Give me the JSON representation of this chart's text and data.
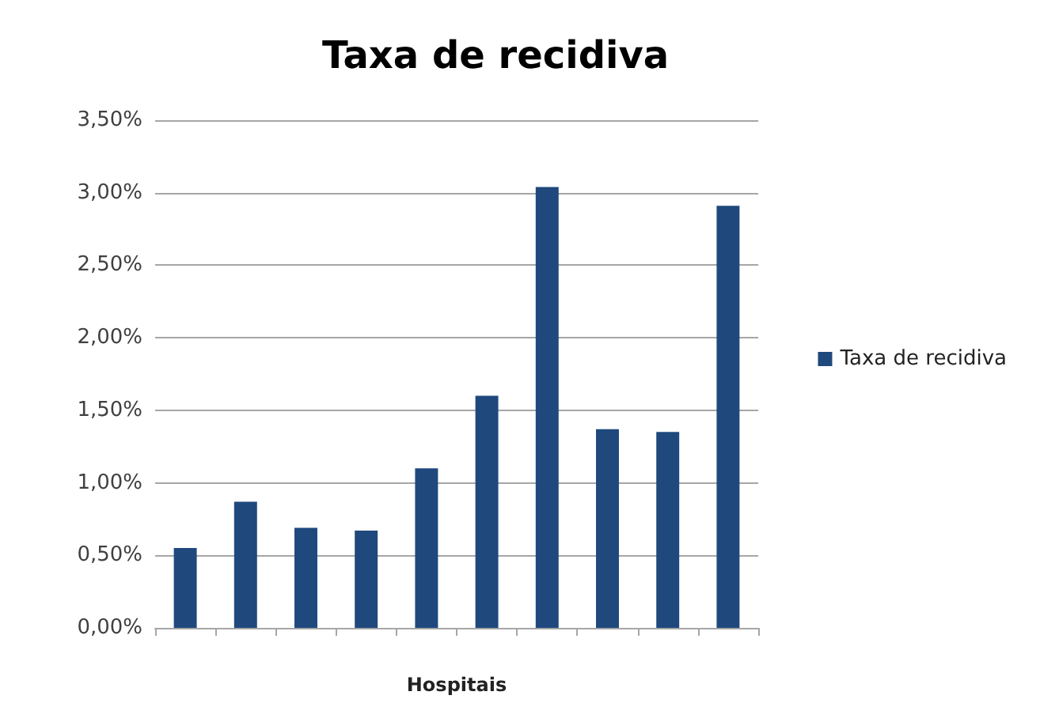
{
  "chart_data": {
    "type": "bar",
    "title": "Taxa de recidiva",
    "xlabel": "Hospitais",
    "categories": [
      null,
      null,
      null,
      null,
      null,
      null,
      null,
      null,
      null,
      null
    ],
    "series": [
      {
        "name": "Taxa de recidiva",
        "color": "#1f497d",
        "values": [
          0.55,
          0.87,
          0.69,
          0.67,
          1.1,
          1.6,
          3.04,
          1.37,
          1.35,
          2.91
        ]
      }
    ],
    "ylim": [
      0,
      3.5
    ],
    "yticks": [
      {
        "value": 0,
        "label": "0,00%"
      },
      {
        "value": 0.5,
        "label": "0,50%"
      },
      {
        "value": 1,
        "label": "1,00%"
      },
      {
        "value": 1.5,
        "label": "1,50%"
      },
      {
        "value": 2,
        "label": "2,00%"
      },
      {
        "value": 2.5,
        "label": "2,50%"
      },
      {
        "value": 3,
        "label": "3,00%"
      },
      {
        "value": 3.5,
        "label": "3,50%"
      }
    ],
    "grid": "y",
    "legend": "right"
  }
}
